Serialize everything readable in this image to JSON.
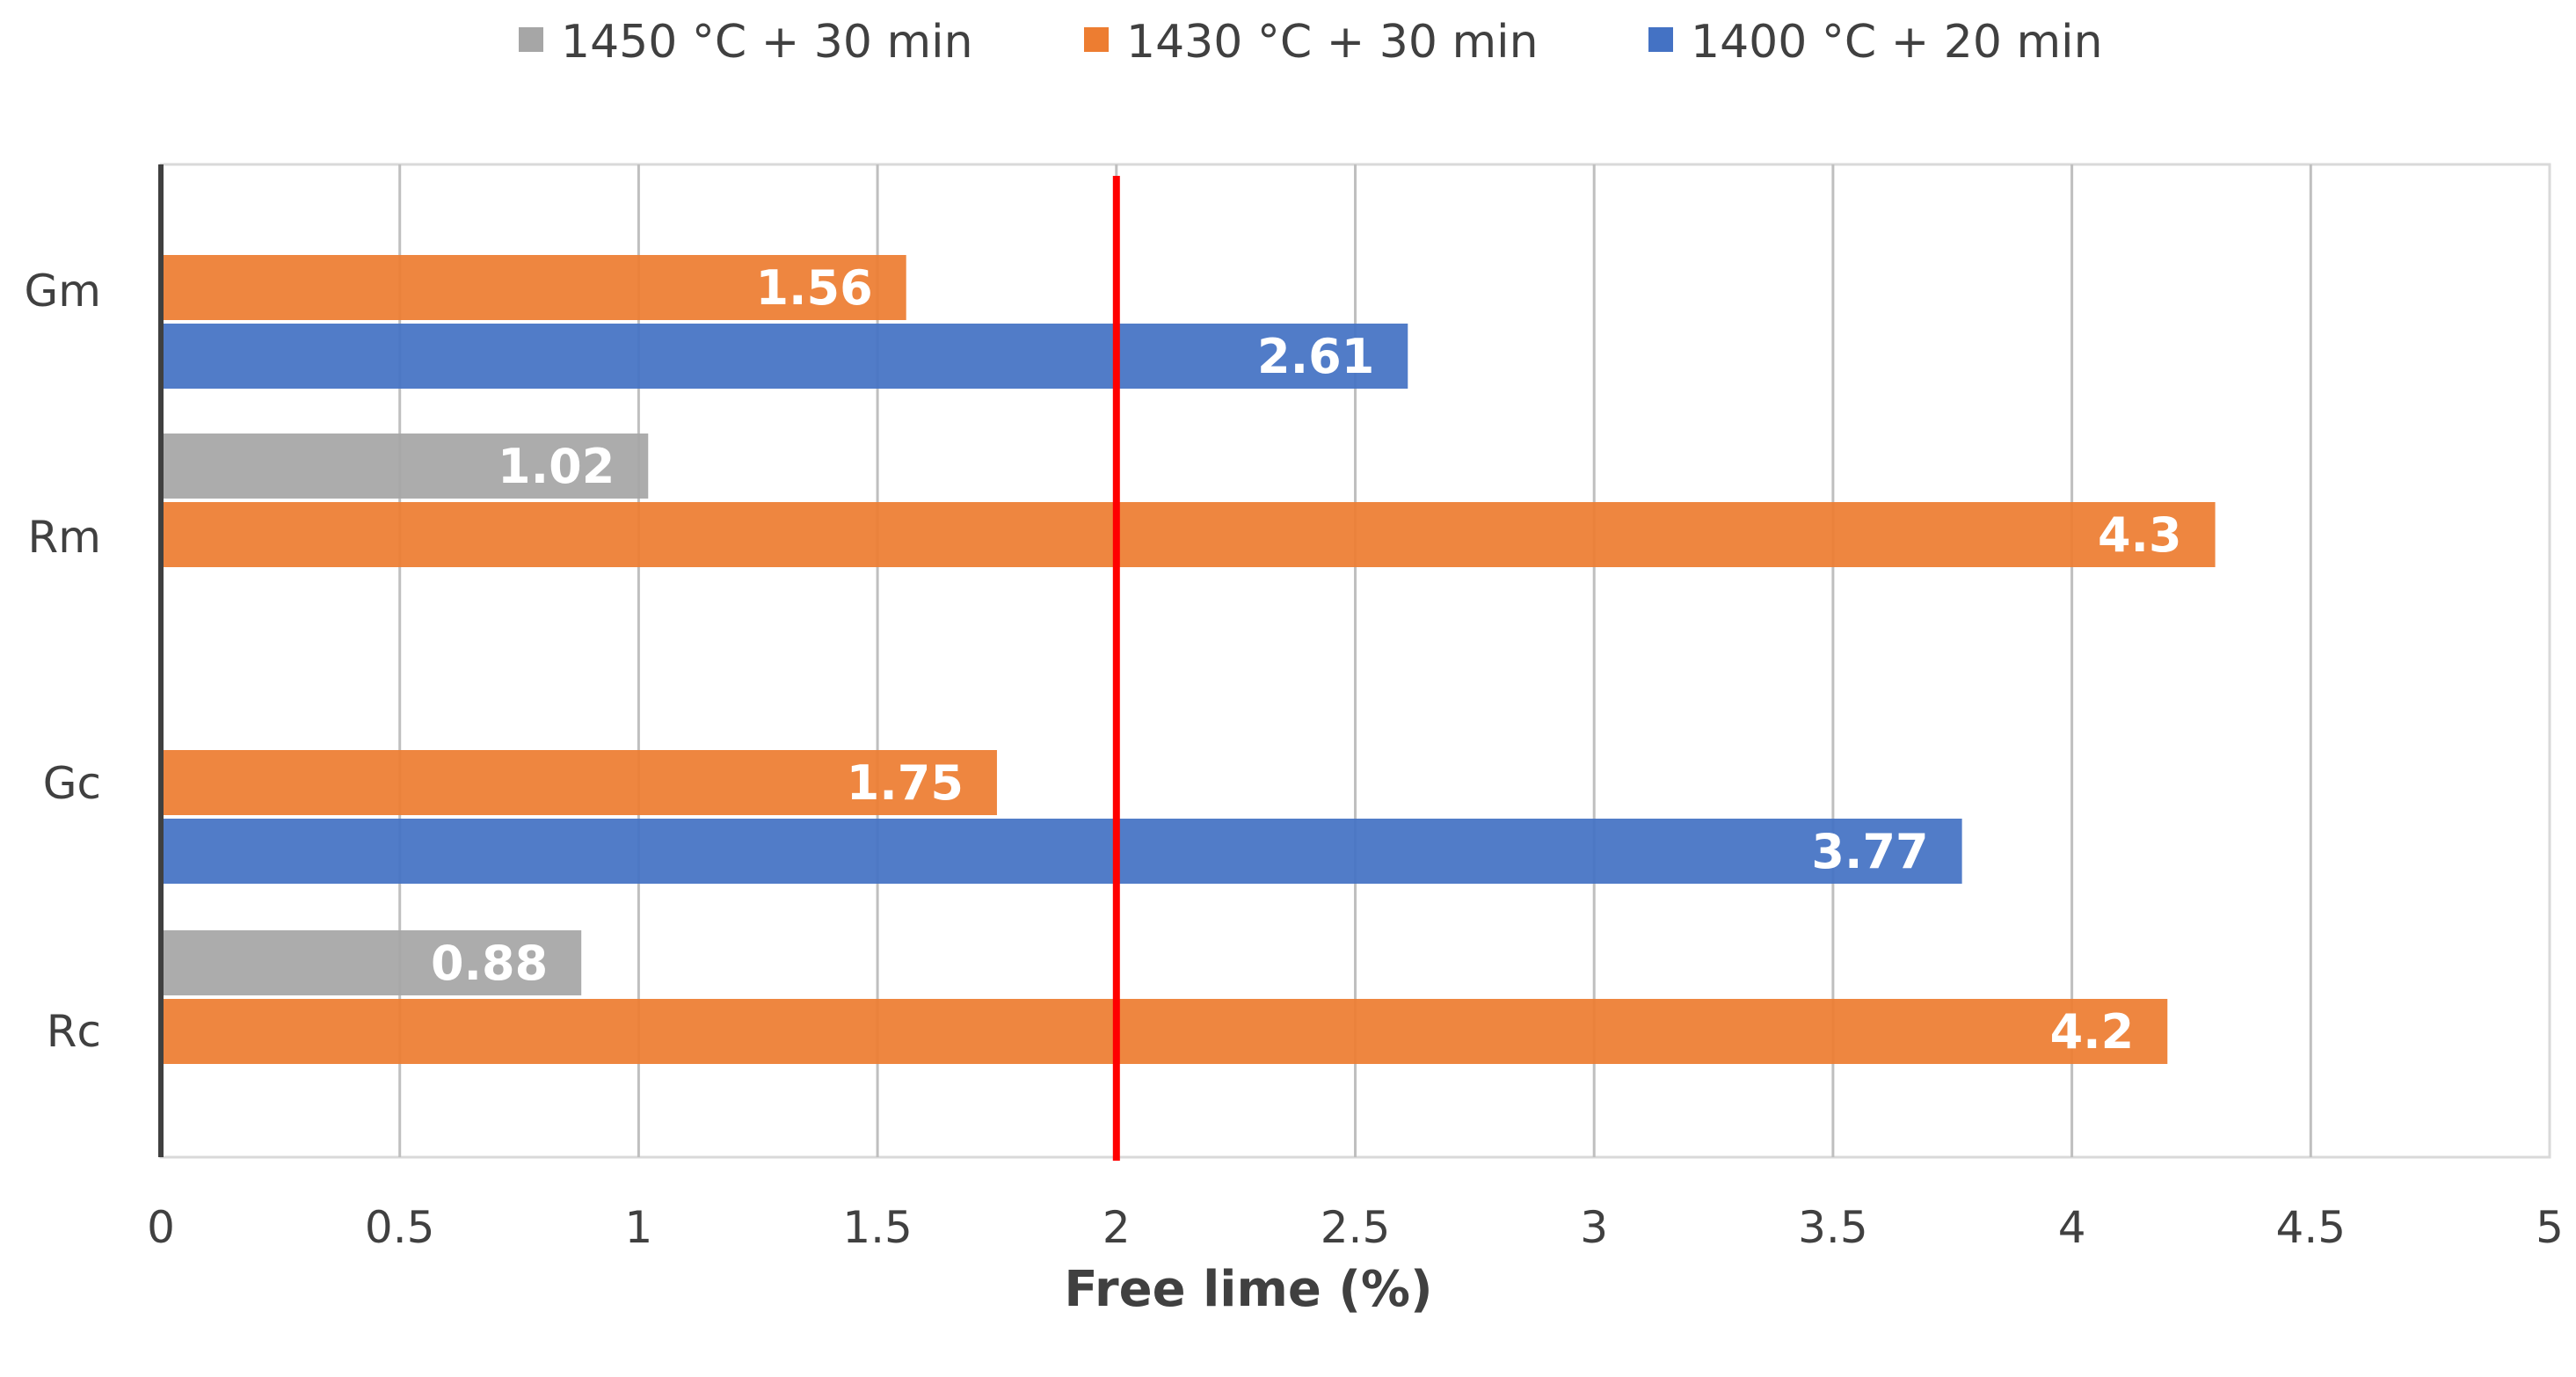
{
  "chart_data": {
    "type": "bar",
    "orientation": "horizontal",
    "title": "",
    "xlabel": "Free lime (%)",
    "ylabel": "",
    "xlim": [
      0,
      5
    ],
    "xticks": [
      0,
      0.5,
      1,
      1.5,
      2,
      2.5,
      3,
      3.5,
      4,
      4.5,
      5
    ],
    "xtick_labels": [
      "0",
      "0.5",
      "1",
      "1.5",
      "2",
      "2.5",
      "3",
      "3.5",
      "4",
      "4.5",
      "5"
    ],
    "grid": "vertical",
    "legend_position": "top",
    "categories": [
      "Gm",
      "Rm",
      "Gc",
      "Rc"
    ],
    "series": [
      {
        "name": "1450 °C + 30 min",
        "color": "#a6a6a6",
        "values": [
          null,
          1.02,
          null,
          0.88
        ],
        "labels": [
          null,
          "1.02",
          null,
          "0.88"
        ]
      },
      {
        "name": "1430 °C + 30 min",
        "color": "#ed7d31",
        "values": [
          1.56,
          4.3,
          1.75,
          4.2
        ],
        "labels": [
          "1.56",
          "4.3",
          "1.75",
          "4.2"
        ]
      },
      {
        "name": "1400 °C + 20 min",
        "color": "#4472c4",
        "values": [
          2.61,
          null,
          3.77,
          null
        ],
        "labels": [
          "2.61",
          null,
          "3.77",
          null
        ]
      }
    ],
    "reference_line": {
      "x": 2,
      "color": "#ff0000"
    }
  }
}
